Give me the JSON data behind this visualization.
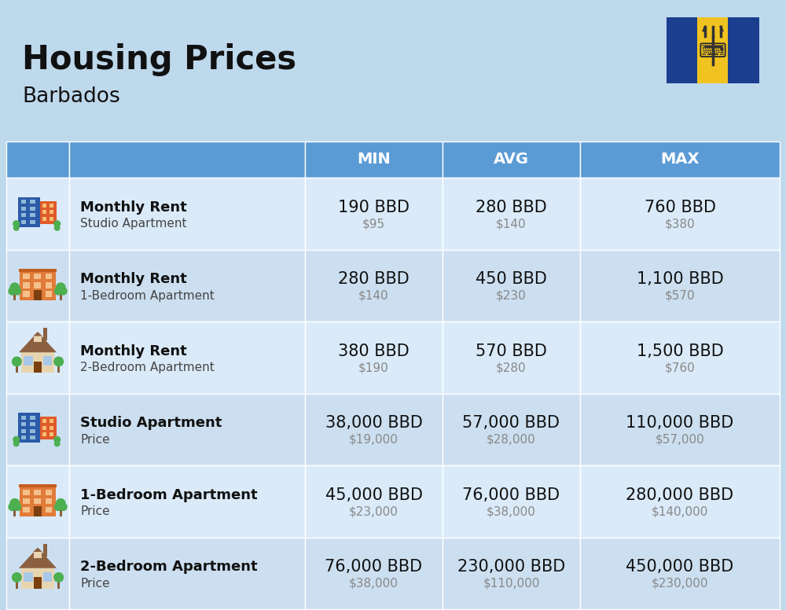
{
  "title": "Housing Prices",
  "subtitle": "Barbados",
  "background_color": "#bed8ec",
  "header_bg_color": "#5b9bd5",
  "row_bg_even": "#ccdff0",
  "row_bg_odd": "#daeaf8",
  "col_headers": [
    "MIN",
    "AVG",
    "MAX"
  ],
  "rows": [
    {
      "label_bold": "Monthly Rent",
      "label_sub": "Studio Apartment",
      "min_bbd": "190 BBD",
      "min_usd": "$95",
      "avg_bbd": "280 BBD",
      "avg_usd": "$140",
      "max_bbd": "760 BBD",
      "max_usd": "$380",
      "icon_type": "studio_blue"
    },
    {
      "label_bold": "Monthly Rent",
      "label_sub": "1-Bedroom Apartment",
      "min_bbd": "280 BBD",
      "min_usd": "$140",
      "avg_bbd": "450 BBD",
      "avg_usd": "$230",
      "max_bbd": "1,100 BBD",
      "max_usd": "$570",
      "icon_type": "one_bed_orange"
    },
    {
      "label_bold": "Monthly Rent",
      "label_sub": "2-Bedroom Apartment",
      "min_bbd": "380 BBD",
      "min_usd": "$190",
      "avg_bbd": "570 BBD",
      "avg_usd": "$280",
      "max_bbd": "1,500 BBD",
      "max_usd": "$760",
      "icon_type": "two_bed_beige"
    },
    {
      "label_bold": "Studio Apartment",
      "label_sub": "Price",
      "min_bbd": "38,000 BBD",
      "min_usd": "$19,000",
      "avg_bbd": "57,000 BBD",
      "avg_usd": "$28,000",
      "max_bbd": "110,000 BBD",
      "max_usd": "$57,000",
      "icon_type": "studio_blue"
    },
    {
      "label_bold": "1-Bedroom Apartment",
      "label_sub": "Price",
      "min_bbd": "45,000 BBD",
      "min_usd": "$23,000",
      "avg_bbd": "76,000 BBD",
      "avg_usd": "$38,000",
      "max_bbd": "280,000 BBD",
      "max_usd": "$140,000",
      "icon_type": "one_bed_orange"
    },
    {
      "label_bold": "2-Bedroom Apartment",
      "label_sub": "Price",
      "min_bbd": "76,000 BBD",
      "min_usd": "$38,000",
      "avg_bbd": "230,000 BBD",
      "avg_usd": "$110,000",
      "max_bbd": "450,000 BBD",
      "max_usd": "$230,000",
      "icon_type": "two_bed_beige"
    }
  ],
  "title_fontsize": 30,
  "subtitle_fontsize": 19,
  "header_fontsize": 14,
  "cell_main_fontsize": 15,
  "cell_sub_fontsize": 11,
  "label_bold_fontsize": 13,
  "label_sub_fontsize": 11
}
